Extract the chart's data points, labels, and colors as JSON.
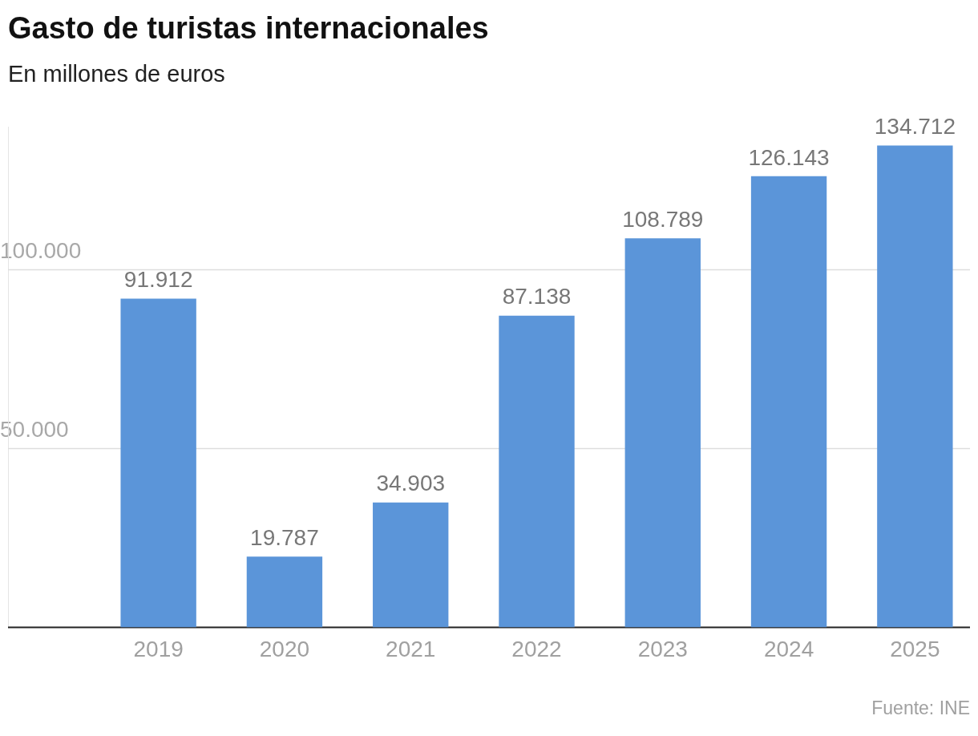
{
  "chart_data": {
    "type": "bar",
    "title": "Gasto de turistas internacionales",
    "subtitle": "En millones de euros",
    "categories": [
      "2019",
      "2020",
      "2021",
      "2022",
      "2023",
      "2024",
      "2025"
    ],
    "values": [
      91912,
      19787,
      34903,
      87138,
      108789,
      126143,
      134712
    ],
    "value_labels": [
      "91.912",
      "19.787",
      "34.903",
      "87.138",
      "108.789",
      "126.143",
      "134.712"
    ],
    "color": "#5b95d9",
    "ylim": [
      0,
      140000
    ],
    "yticks": [
      {
        "value": 0,
        "label": null
      },
      {
        "value": 50000,
        "label": "50.000"
      },
      {
        "value": 100000,
        "label": "100.000"
      }
    ],
    "grid": "y",
    "legend": false,
    "annotations": [
      "Fuente: INE"
    ]
  }
}
